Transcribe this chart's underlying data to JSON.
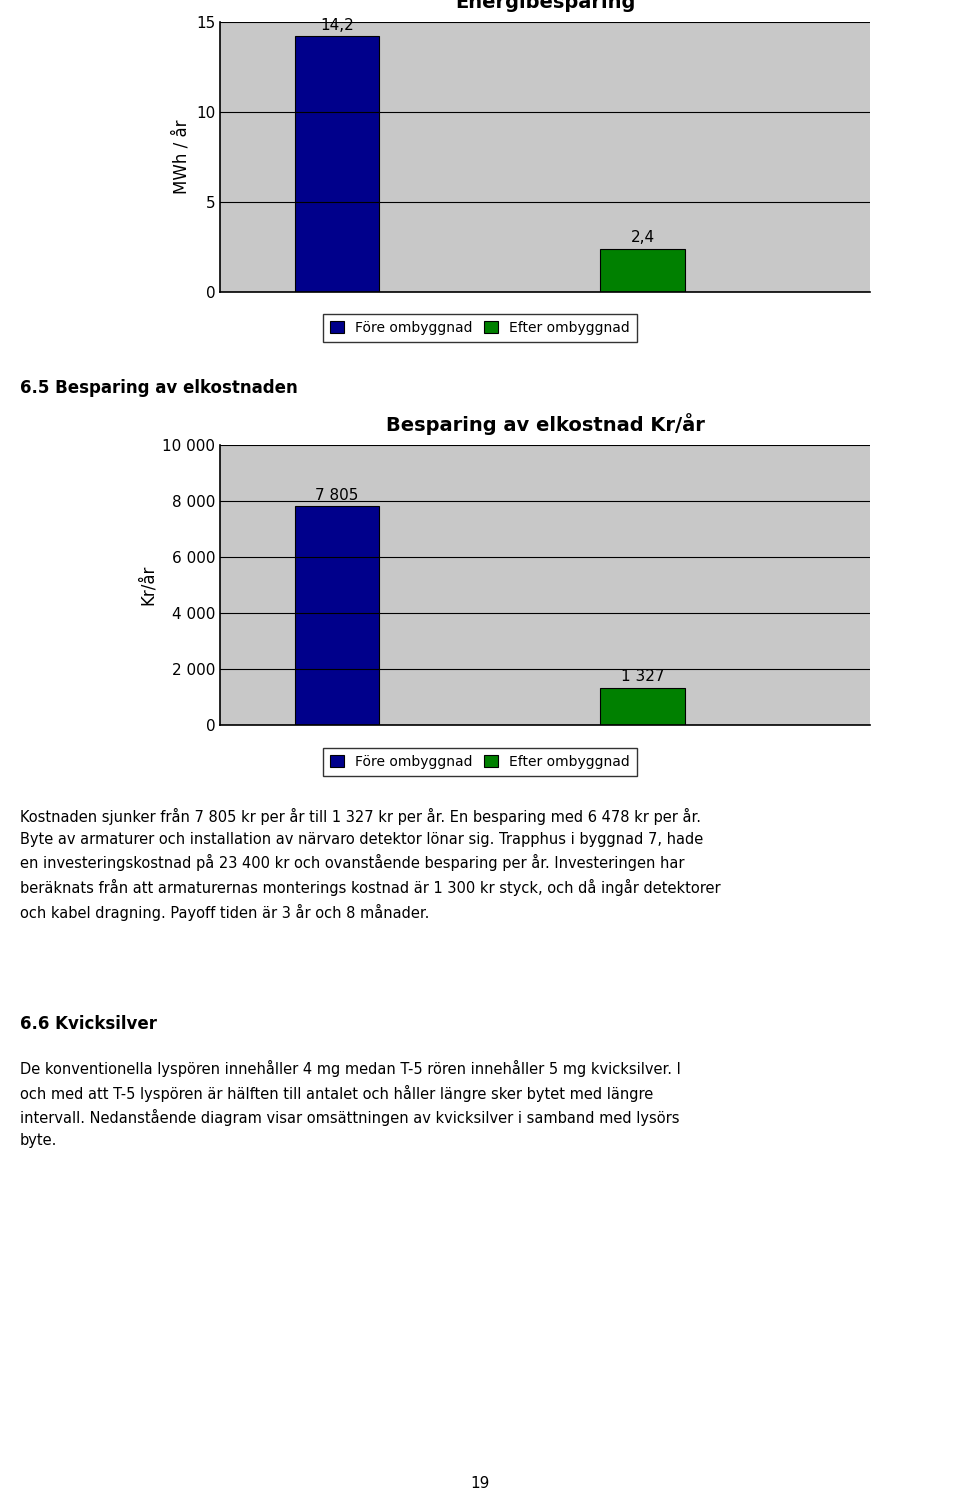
{
  "chart1_title": "Energibesparing",
  "chart1_ylabel": "MWh / år",
  "chart1_values": [
    14.2,
    2.4
  ],
  "chart1_colors": [
    "#00008B",
    "#008000"
  ],
  "chart1_ylim": [
    0,
    15
  ],
  "chart1_yticks": [
    0,
    5,
    10,
    15
  ],
  "chart1_bar_labels": [
    "14,2",
    "2,4"
  ],
  "chart2_title": "Besparing av elkostnad Kr/år",
  "chart2_ylabel": "Kr/år",
  "chart2_values": [
    7805,
    1327
  ],
  "chart2_colors": [
    "#00008B",
    "#008000"
  ],
  "chart2_ylim": [
    0,
    10000
  ],
  "chart2_yticks": [
    0,
    2000,
    4000,
    6000,
    8000,
    10000
  ],
  "chart2_yticklabels": [
    "0",
    "2 000",
    "4 000",
    "6 000",
    "8 000",
    "10 000"
  ],
  "chart2_bar_labels": [
    "7 805",
    "1 327"
  ],
  "legend_labels": [
    "Före ombyggnad",
    "Efter ombyggnad"
  ],
  "legend_colors": [
    "#00008B",
    "#008000"
  ],
  "section_title": "6.5 Besparing av elkostnaden",
  "para1": "Kostnaden sjunker från 7 805 kr per år till 1 327 kr per år. En besparing med 6 478 kr per år.\nByte av armaturer och installation av närvaro detektor lönar sig. Trapphus i byggnad 7, hade\nen investeringskostnad på 23 400 kr och ovanstående besparing per år. Investeringen har\nberäknats från att armaturernas monterings kostnad är 1 300 kr styck, och då ingår detektorer\noch kabel dragning. Payoff tiden är 3 år och 8 månader.",
  "section2_title": "6.6 Kvicksilver",
  "para2": "De konventionella lysрören innehåller 4 mg medan T-5 rören innehåller 5 mg kvicksilver. I\noch med att T-5 lysрören är hälften till antalet och håller längre sker bytet med längre\nintervall. Nedanstående diagram visar omsättningen av kvicksilver i samband med lysörs\nbyte.",
  "page_number": "19",
  "background_color": "#ffffff",
  "chart_bg_color": "#c8c8c8",
  "grid_color": "#000000"
}
